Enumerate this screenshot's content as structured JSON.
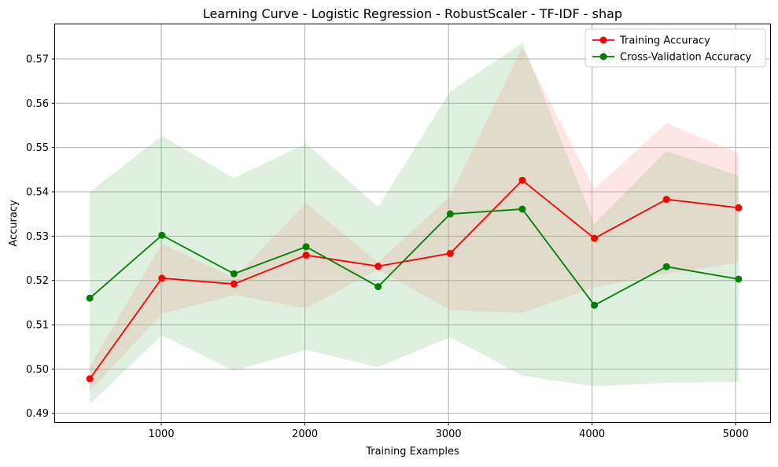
{
  "chart_data": {
    "type": "line",
    "title": "Learning Curve - Logistic Regression - RobustScaler - TF-IDF - shap",
    "xlabel": "Training Examples",
    "ylabel": "Accuracy",
    "xlim": [
      260,
      5240
    ],
    "ylim": [
      0.488,
      0.5778
    ],
    "grid": true,
    "legend_position": "top-right",
    "x": [
      502,
      1004,
      1506,
      2008,
      2510,
      3012,
      3514,
      4016,
      4518,
      5020
    ],
    "xticks": [
      1000,
      2000,
      3000,
      4000,
      5000
    ],
    "xtick_labels": [
      "1000",
      "2000",
      "3000",
      "4000",
      "5000"
    ],
    "yticks": [
      0.49,
      0.5,
      0.51,
      0.52,
      0.53,
      0.54,
      0.55,
      0.56,
      0.57
    ],
    "ytick_labels": [
      "0.49",
      "0.50",
      "0.51",
      "0.52",
      "0.53",
      "0.54",
      "0.55",
      "0.56",
      "0.57"
    ],
    "series": [
      {
        "name": "Training Accuracy",
        "color": "#ff0000",
        "fill_color": "#ff9999",
        "values": [
          0.4978,
          0.5205,
          0.5192,
          0.5257,
          0.5232,
          0.5261,
          0.5426,
          0.5295,
          0.5383,
          0.5364
        ],
        "upper": [
          0.5006,
          0.5283,
          0.5206,
          0.5374,
          0.5241,
          0.539,
          0.5726,
          0.5406,
          0.5555,
          0.5487
        ],
        "lower": [
          0.495,
          0.5125,
          0.5167,
          0.5137,
          0.5225,
          0.5133,
          0.5127,
          0.5184,
          0.5215,
          0.524
        ]
      },
      {
        "name": "Cross-Validation Accuracy",
        "color": "#008000",
        "fill_color": "#66b266",
        "values": [
          0.516,
          0.5302,
          0.5215,
          0.5276,
          0.5186,
          0.535,
          0.5361,
          0.5144,
          0.5231,
          0.5203
        ],
        "upper": [
          0.54,
          0.5526,
          0.5431,
          0.5509,
          0.5366,
          0.5627,
          0.5736,
          0.5328,
          0.5492,
          0.5436
        ],
        "lower": [
          0.4921,
          0.5076,
          0.4996,
          0.5043,
          0.5004,
          0.5072,
          0.4985,
          0.4961,
          0.4969,
          0.4971
        ]
      }
    ]
  }
}
